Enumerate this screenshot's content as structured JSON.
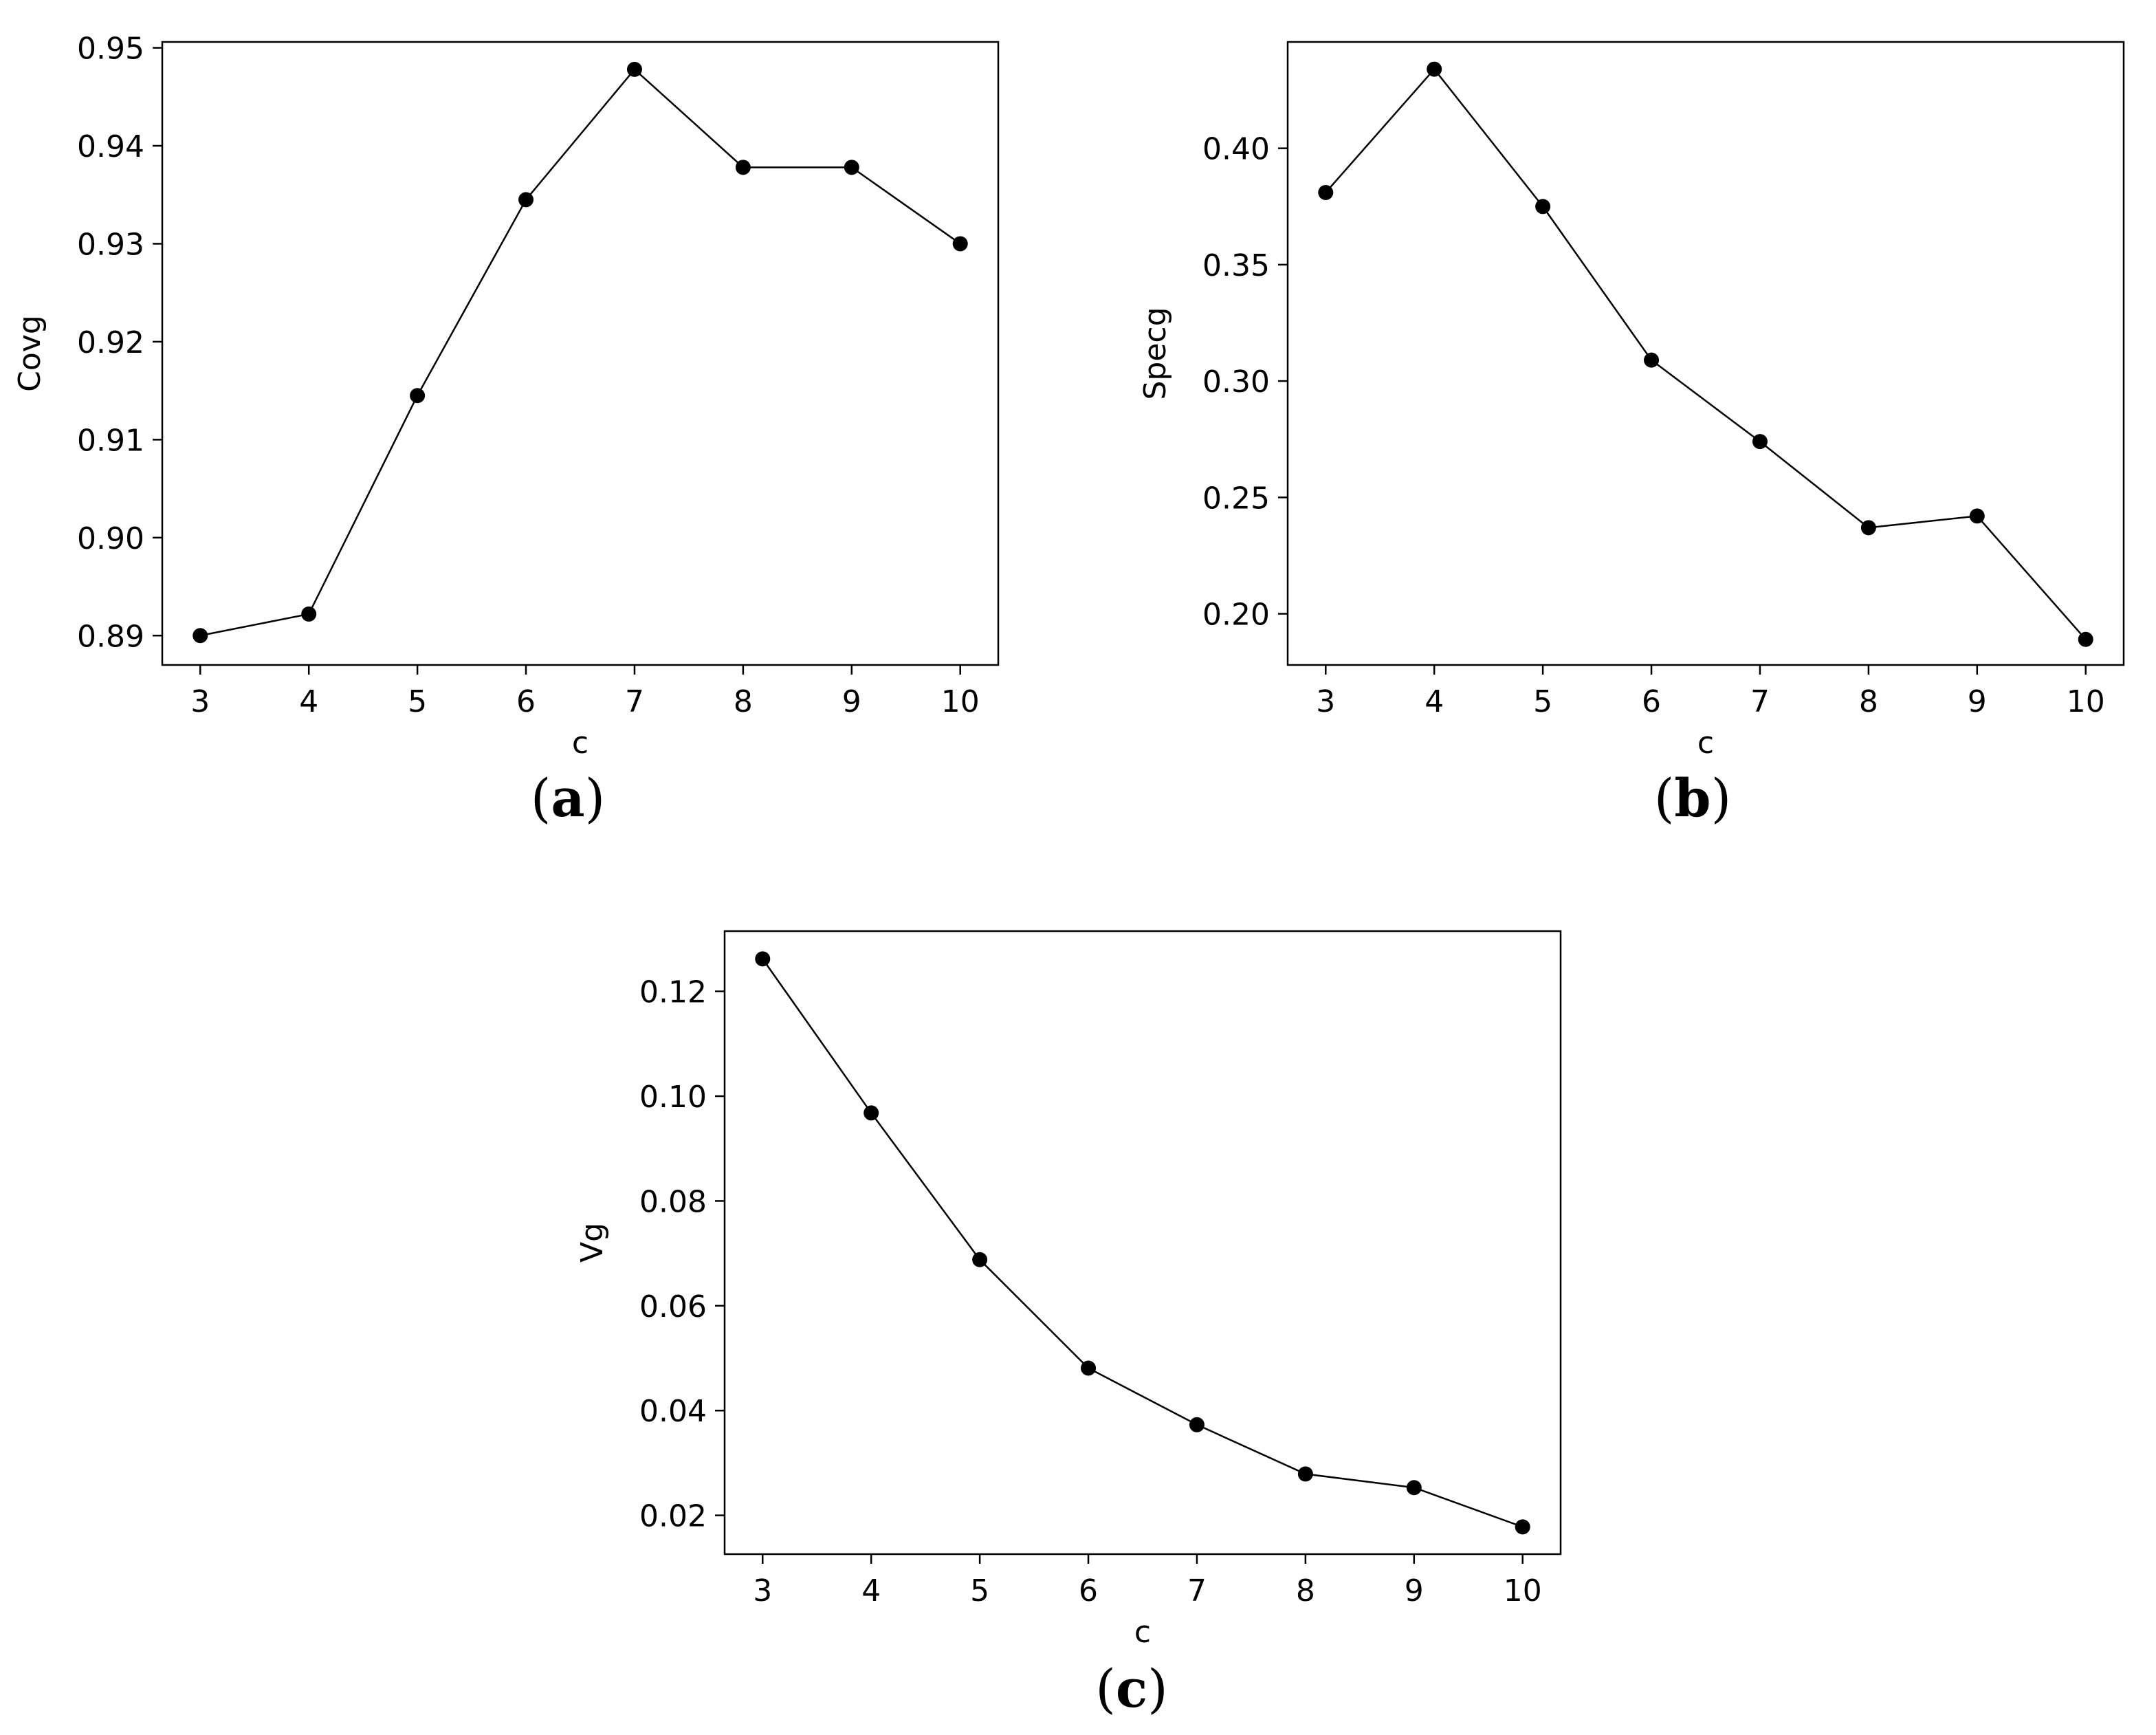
{
  "chart_data": [
    {
      "id": "a",
      "type": "line",
      "caption_letter": "a",
      "xlabel": "c",
      "ylabel": "Covg",
      "x": [
        3,
        4,
        5,
        6,
        7,
        8,
        9,
        10
      ],
      "series": [
        {
          "values": [
            0.89,
            0.8922,
            0.9145,
            0.9345,
            0.9478,
            0.9378,
            0.9378,
            0.93
          ]
        }
      ],
      "xticks": [
        3,
        4,
        5,
        6,
        7,
        8,
        9,
        10
      ],
      "xtick_labels": [
        "3",
        "4",
        "5",
        "6",
        "7",
        "8",
        "9",
        "10"
      ],
      "yticks": [
        0.89,
        0.9,
        0.91,
        0.92,
        0.93,
        0.94,
        0.95
      ],
      "ytick_labels": [
        "0.89",
        "0.90",
        "0.91",
        "0.92",
        "0.93",
        "0.94",
        "0.95"
      ],
      "xlim": [
        2.65,
        10.35
      ],
      "ylim": [
        0.887,
        0.9506
      ],
      "grid": false,
      "marker_color": "#000000",
      "line_color": "#000000"
    },
    {
      "id": "b",
      "type": "line",
      "caption_letter": "b",
      "xlabel": "c",
      "ylabel": "Specg",
      "x": [
        3,
        4,
        5,
        6,
        7,
        8,
        9,
        10
      ],
      "series": [
        {
          "values": [
            0.381,
            0.434,
            0.375,
            0.309,
            0.274,
            0.237,
            0.242,
            0.189
          ]
        }
      ],
      "xticks": [
        3,
        4,
        5,
        6,
        7,
        8,
        9,
        10
      ],
      "xtick_labels": [
        "3",
        "4",
        "5",
        "6",
        "7",
        "8",
        "9",
        "10"
      ],
      "yticks": [
        0.2,
        0.25,
        0.3,
        0.35,
        0.4
      ],
      "ytick_labels": [
        "0.20",
        "0.25",
        "0.30",
        "0.35",
        "0.40"
      ],
      "xlim": [
        2.65,
        10.35
      ],
      "ylim": [
        0.178,
        0.4457
      ],
      "grid": false,
      "marker_color": "#000000",
      "line_color": "#000000"
    },
    {
      "id": "c",
      "type": "line",
      "caption_letter": "c",
      "xlabel": "c",
      "ylabel": "Vg",
      "x": [
        3,
        4,
        5,
        6,
        7,
        8,
        9,
        10
      ],
      "series": [
        {
          "values": [
            0.1262,
            0.0968,
            0.0688,
            0.0481,
            0.0373,
            0.0279,
            0.0253,
            0.0178
          ]
        }
      ],
      "xticks": [
        3,
        4,
        5,
        6,
        7,
        8,
        9,
        10
      ],
      "xtick_labels": [
        "3",
        "4",
        "5",
        "6",
        "7",
        "8",
        "9",
        "10"
      ],
      "yticks": [
        0.02,
        0.04,
        0.06,
        0.08,
        0.1,
        0.12
      ],
      "ytick_labels": [
        "0.02",
        "0.04",
        "0.06",
        "0.08",
        "0.10",
        "0.12"
      ],
      "xlim": [
        2.65,
        10.35
      ],
      "ylim": [
        0.0126,
        0.1315
      ],
      "grid": false,
      "marker_color": "#000000",
      "line_color": "#000000"
    }
  ]
}
